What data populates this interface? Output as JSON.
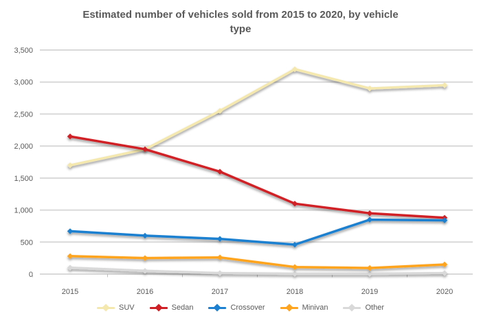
{
  "title": {
    "line1": "Estimated number of vehicles sold from 2015 to 2020, by vehicle",
    "line2": "type"
  },
  "colors": {
    "grid": "#D9D9D9",
    "axis_tick": "#BFBFBF",
    "text": "#595959",
    "background": "#FFFFFF"
  },
  "chart_data": {
    "type": "line",
    "categories": [
      "2015",
      "2016",
      "2017",
      "2018",
      "2019",
      "2020"
    ],
    "series": [
      {
        "name": "SUV",
        "color": "#F5E8AE",
        "values": [
          1700,
          1950,
          2550,
          3200,
          2900,
          2950
        ]
      },
      {
        "name": "Sedan",
        "color": "#D02026",
        "values": [
          2150,
          1950,
          1600,
          1100,
          950,
          880
        ]
      },
      {
        "name": "Crossover",
        "color": "#1E80D0",
        "values": [
          670,
          600,
          550,
          460,
          850,
          840
        ]
      },
      {
        "name": "Minivan",
        "color": "#FFA41F",
        "values": [
          280,
          250,
          260,
          110,
          95,
          150
        ]
      },
      {
        "name": "Other",
        "color": "#D9D9D9",
        "values": [
          100,
          50,
          15,
          5,
          5,
          15
        ]
      }
    ],
    "draw_order": [
      4,
      0,
      1,
      2,
      3
    ],
    "ylim": [
      0,
      3500
    ],
    "ytick_step": 500,
    "ytick_labels": [
      "0",
      "500",
      "1,000",
      "1,500",
      "2,000",
      "2,500",
      "3,000",
      "3,500"
    ],
    "grid": true,
    "legend_position": "bottom",
    "marker": "diamond"
  }
}
